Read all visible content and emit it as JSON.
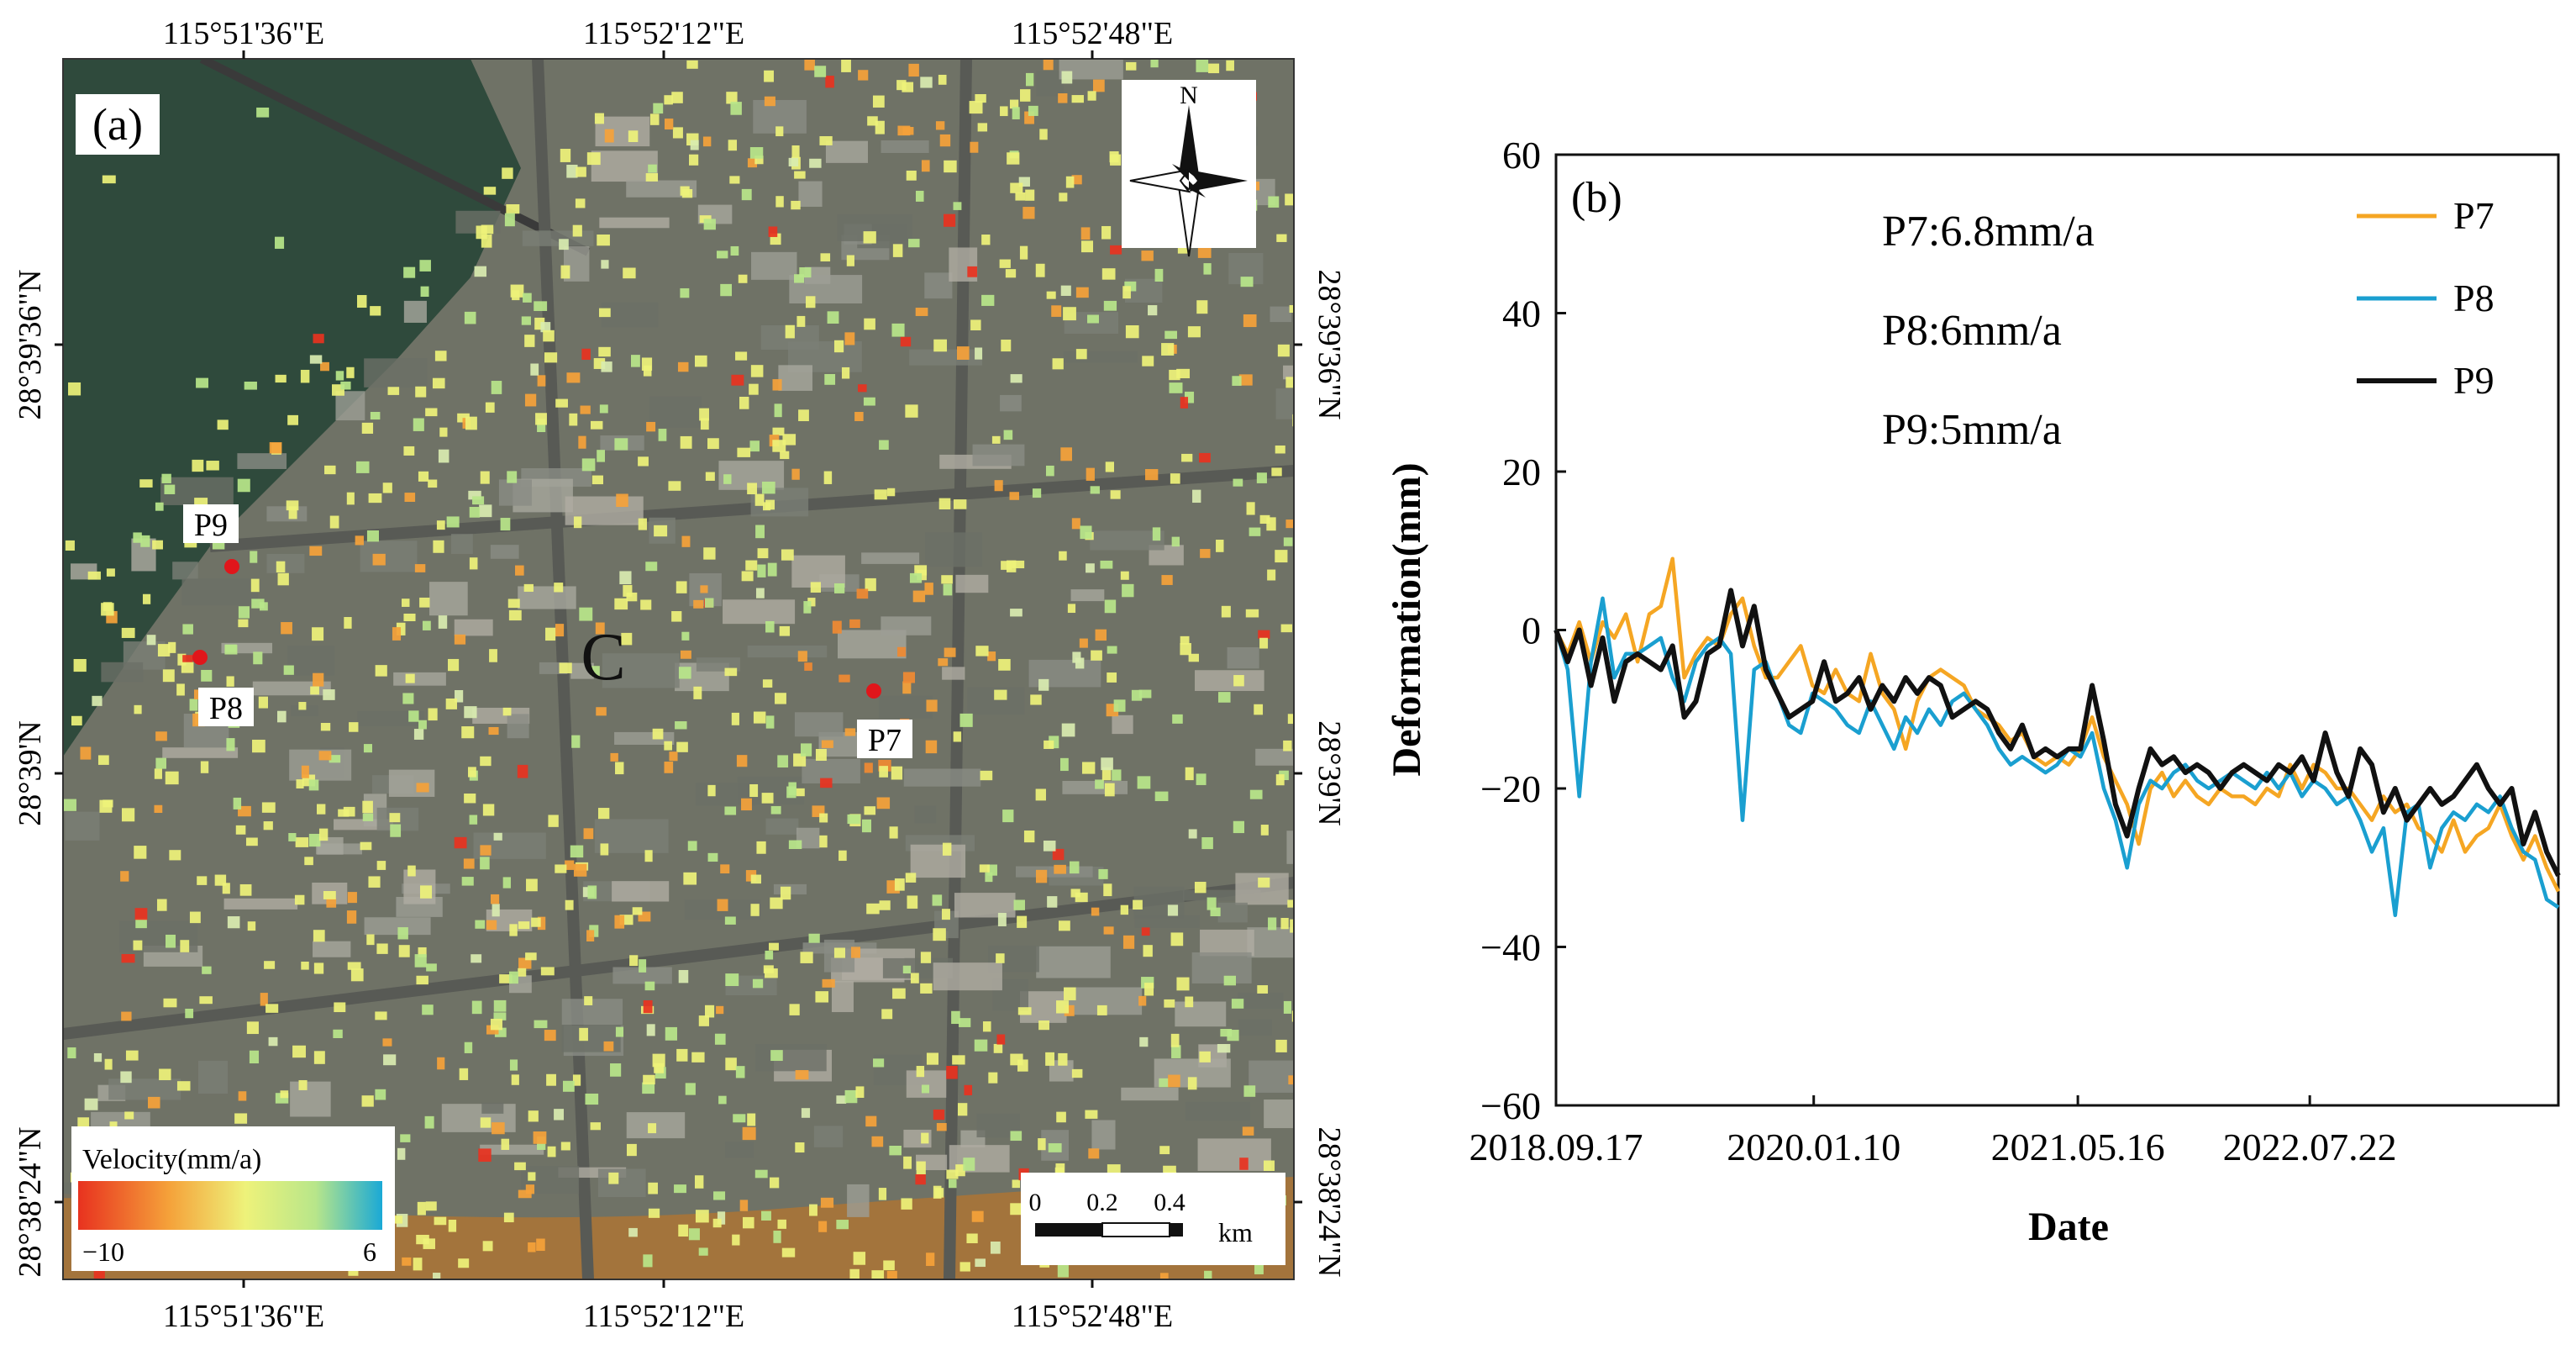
{
  "panel_a": {
    "label": "(a)",
    "lon_labels": [
      "115°51'36\"E",
      "115°52'12\"E",
      "115°52'48\"E"
    ],
    "lat_labels": [
      "28°39'36\"N",
      "28°39'N",
      "28°38'24\"N"
    ],
    "north": "N",
    "points": [
      "P9",
      "P8",
      "P7"
    ],
    "area_letter": "C",
    "legend": {
      "title": "Velocity(mm/a)",
      "min_label": "−10",
      "max_label": "6"
    },
    "scale": {
      "ticks": [
        "0",
        "0.2",
        "0.4"
      ],
      "unit": "km"
    },
    "colors": {
      "ramp": [
        "#e8321f",
        "#f5a23a",
        "#eef27a",
        "#b8e68a",
        "#1aa9d6"
      ],
      "marker": "#e0161b",
      "water": "#2f4a3c"
    }
  },
  "chart_data": {
    "type": "line",
    "panel_label": "(b)",
    "xlabel": "Date",
    "ylabel": "Deformation(mm)",
    "ylim": [
      -60,
      60
    ],
    "yticks": [
      "60",
      "40",
      "20",
      "0",
      "-20",
      "-40",
      "-60"
    ],
    "xlim": [
      "2018.09.17",
      "2023.10.28"
    ],
    "xticks": [
      "2018.09.17",
      "2020.01.10",
      "2021.05.16",
      "2022.07.22"
    ],
    "grid": false,
    "legend": "top-right",
    "annotations": [
      "P7:6.8mm/a",
      "P8:6mm/a",
      "P9:5mm/a"
    ],
    "series": [
      {
        "name": "P7",
        "color": "#f5a623",
        "values": [
          0,
          -3,
          1,
          -4,
          1,
          -1,
          2,
          -4,
          2,
          3,
          9,
          -6,
          -3,
          -1,
          -2,
          2,
          4,
          -2,
          -6,
          -6,
          -4,
          -2,
          -7,
          -8,
          -5,
          -8,
          -9,
          -3,
          -8,
          -10,
          -15,
          -9,
          -6,
          -5,
          -6,
          -7,
          -10,
          -11,
          -12,
          -14,
          -13,
          -16,
          -17,
          -16,
          -17,
          -15,
          -11,
          -16,
          -19,
          -22,
          -27,
          -20,
          -18,
          -21,
          -19,
          -21,
          -22,
          -20,
          -21,
          -21,
          -22,
          -20,
          -21,
          -17,
          -20,
          -17,
          -18,
          -20,
          -20,
          -22,
          -24,
          -21,
          -23,
          -22,
          -25,
          -26,
          -28,
          -24,
          -28,
          -26,
          -25,
          -22,
          -26,
          -29,
          -26,
          -30,
          -33
        ]
      },
      {
        "name": "P8",
        "color": "#1a9fd0",
        "values": [
          0,
          -5,
          -21,
          -4,
          4,
          -6,
          -3,
          -3,
          -2,
          -1,
          -6,
          -9,
          -4,
          -2,
          -1,
          -3,
          -24,
          -5,
          -4,
          -8,
          -12,
          -13,
          -8,
          -9,
          -10,
          -12,
          -13,
          -9,
          -12,
          -15,
          -11,
          -13,
          -10,
          -12,
          -9,
          -8,
          -10,
          -12,
          -15,
          -17,
          -16,
          -17,
          -18,
          -17,
          -15,
          -16,
          -13,
          -20,
          -24,
          -30,
          -22,
          -19,
          -20,
          -18,
          -17,
          -19,
          -20,
          -19,
          -18,
          -19,
          -20,
          -18,
          -20,
          -18,
          -21,
          -19,
          -20,
          -22,
          -21,
          -24,
          -28,
          -25,
          -36,
          -23,
          -22,
          -30,
          -25,
          -23,
          -24,
          -22,
          -23,
          -21,
          -25,
          -28,
          -29,
          -34,
          -35
        ]
      },
      {
        "name": "P9",
        "color": "#111111",
        "values": [
          0,
          -4,
          0,
          -7,
          -1,
          -9,
          -4,
          -3,
          -4,
          -5,
          -2,
          -11,
          -9,
          -3,
          -2,
          5,
          -2,
          3,
          -5,
          -8,
          -11,
          -10,
          -9,
          -4,
          -9,
          -8,
          -6,
          -10,
          -7,
          -9,
          -6,
          -8,
          -6,
          -7,
          -11,
          -10,
          -9,
          -10,
          -13,
          -15,
          -12,
          -16,
          -15,
          -16,
          -15,
          -15,
          -7,
          -14,
          -22,
          -26,
          -20,
          -15,
          -17,
          -16,
          -18,
          -17,
          -18,
          -20,
          -18,
          -17,
          -18,
          -19,
          -17,
          -18,
          -16,
          -19,
          -13,
          -18,
          -21,
          -15,
          -17,
          -23,
          -20,
          -24,
          -22,
          -20,
          -22,
          -21,
          -19,
          -17,
          -20,
          -22,
          -20,
          -27,
          -23,
          -28,
          -31
        ]
      }
    ]
  }
}
